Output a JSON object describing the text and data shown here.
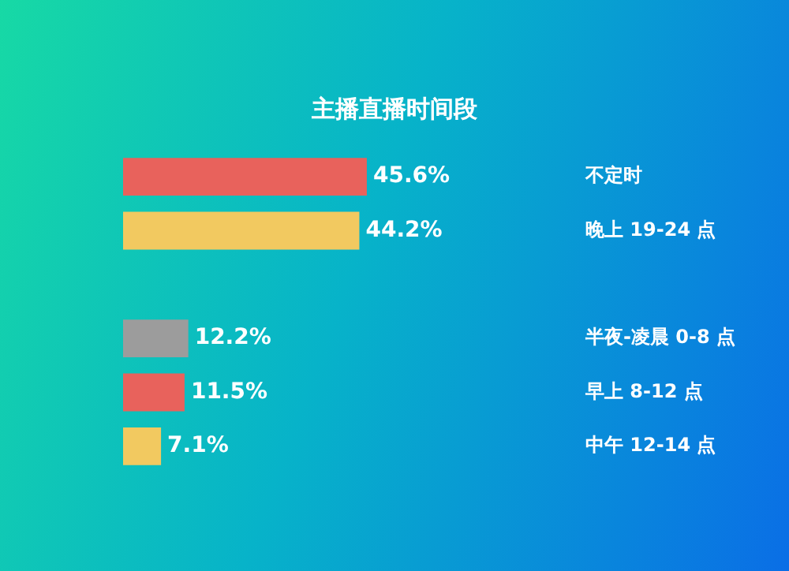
{
  "chart_data": {
    "type": "bar",
    "orientation": "horizontal",
    "title": "主播直播时间段",
    "categories": [
      "不定时",
      "晚上 19-24 点",
      null,
      "半夜-凌晨 0-8 点",
      "早上 8-12 点",
      "中午 12-14 点"
    ],
    "values": [
      45.6,
      44.2,
      null,
      12.2,
      11.5,
      7.1
    ],
    "value_labels": [
      "45.6%",
      "44.2%",
      null,
      "12.2%",
      "11.5%",
      "7.1%"
    ],
    "colors": [
      "#e8625c",
      "#f2c960",
      "#4a4a4a",
      "#9c9c9c",
      "#e8625c",
      "#f2c960"
    ],
    "legend": false
  }
}
